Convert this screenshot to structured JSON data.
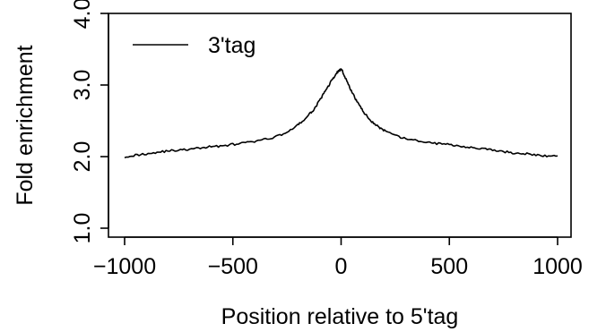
{
  "chart_data": {
    "type": "line",
    "xlabel": "Position relative to 5'tag",
    "ylabel": "Fold enrichment",
    "xlim": [
      -1000,
      1000
    ],
    "ylim": [
      1.0,
      4.0
    ],
    "x_ticks": [
      -1000,
      -500,
      0,
      500,
      1000
    ],
    "x_tick_labels": [
      "−1000",
      "−500",
      "0",
      "500",
      "1000"
    ],
    "y_ticks": [
      1.0,
      2.0,
      3.0,
      4.0
    ],
    "y_tick_labels": [
      "1.0",
      "2.0",
      "3.0",
      "4.0"
    ],
    "legend": {
      "position": "top-left",
      "entries": [
        "3'tag"
      ]
    },
    "line_color": "#000000",
    "series": [
      {
        "name": "3'tag",
        "x": [
          -1000,
          -950,
          -900,
          -850,
          -800,
          -750,
          -700,
          -650,
          -600,
          -550,
          -500,
          -450,
          -400,
          -350,
          -300,
          -250,
          -200,
          -175,
          -150,
          -125,
          -100,
          -80,
          -60,
          -40,
          -20,
          -10,
          0,
          10,
          20,
          40,
          60,
          80,
          100,
          125,
          150,
          175,
          200,
          250,
          300,
          350,
          400,
          450,
          500,
          550,
          600,
          650,
          700,
          750,
          800,
          850,
          900,
          950,
          1000
        ],
        "y": [
          2.0,
          2.02,
          2.04,
          2.06,
          2.08,
          2.09,
          2.1,
          2.12,
          2.14,
          2.15,
          2.17,
          2.19,
          2.21,
          2.24,
          2.28,
          2.34,
          2.44,
          2.5,
          2.58,
          2.66,
          2.78,
          2.88,
          2.98,
          3.08,
          3.17,
          3.2,
          3.22,
          3.17,
          3.1,
          2.96,
          2.84,
          2.74,
          2.64,
          2.54,
          2.47,
          2.41,
          2.36,
          2.29,
          2.25,
          2.22,
          2.2,
          2.18,
          2.17,
          2.15,
          2.13,
          2.11,
          2.09,
          2.07,
          2.05,
          2.04,
          2.02,
          2.01,
          2.01
        ]
      }
    ]
  }
}
